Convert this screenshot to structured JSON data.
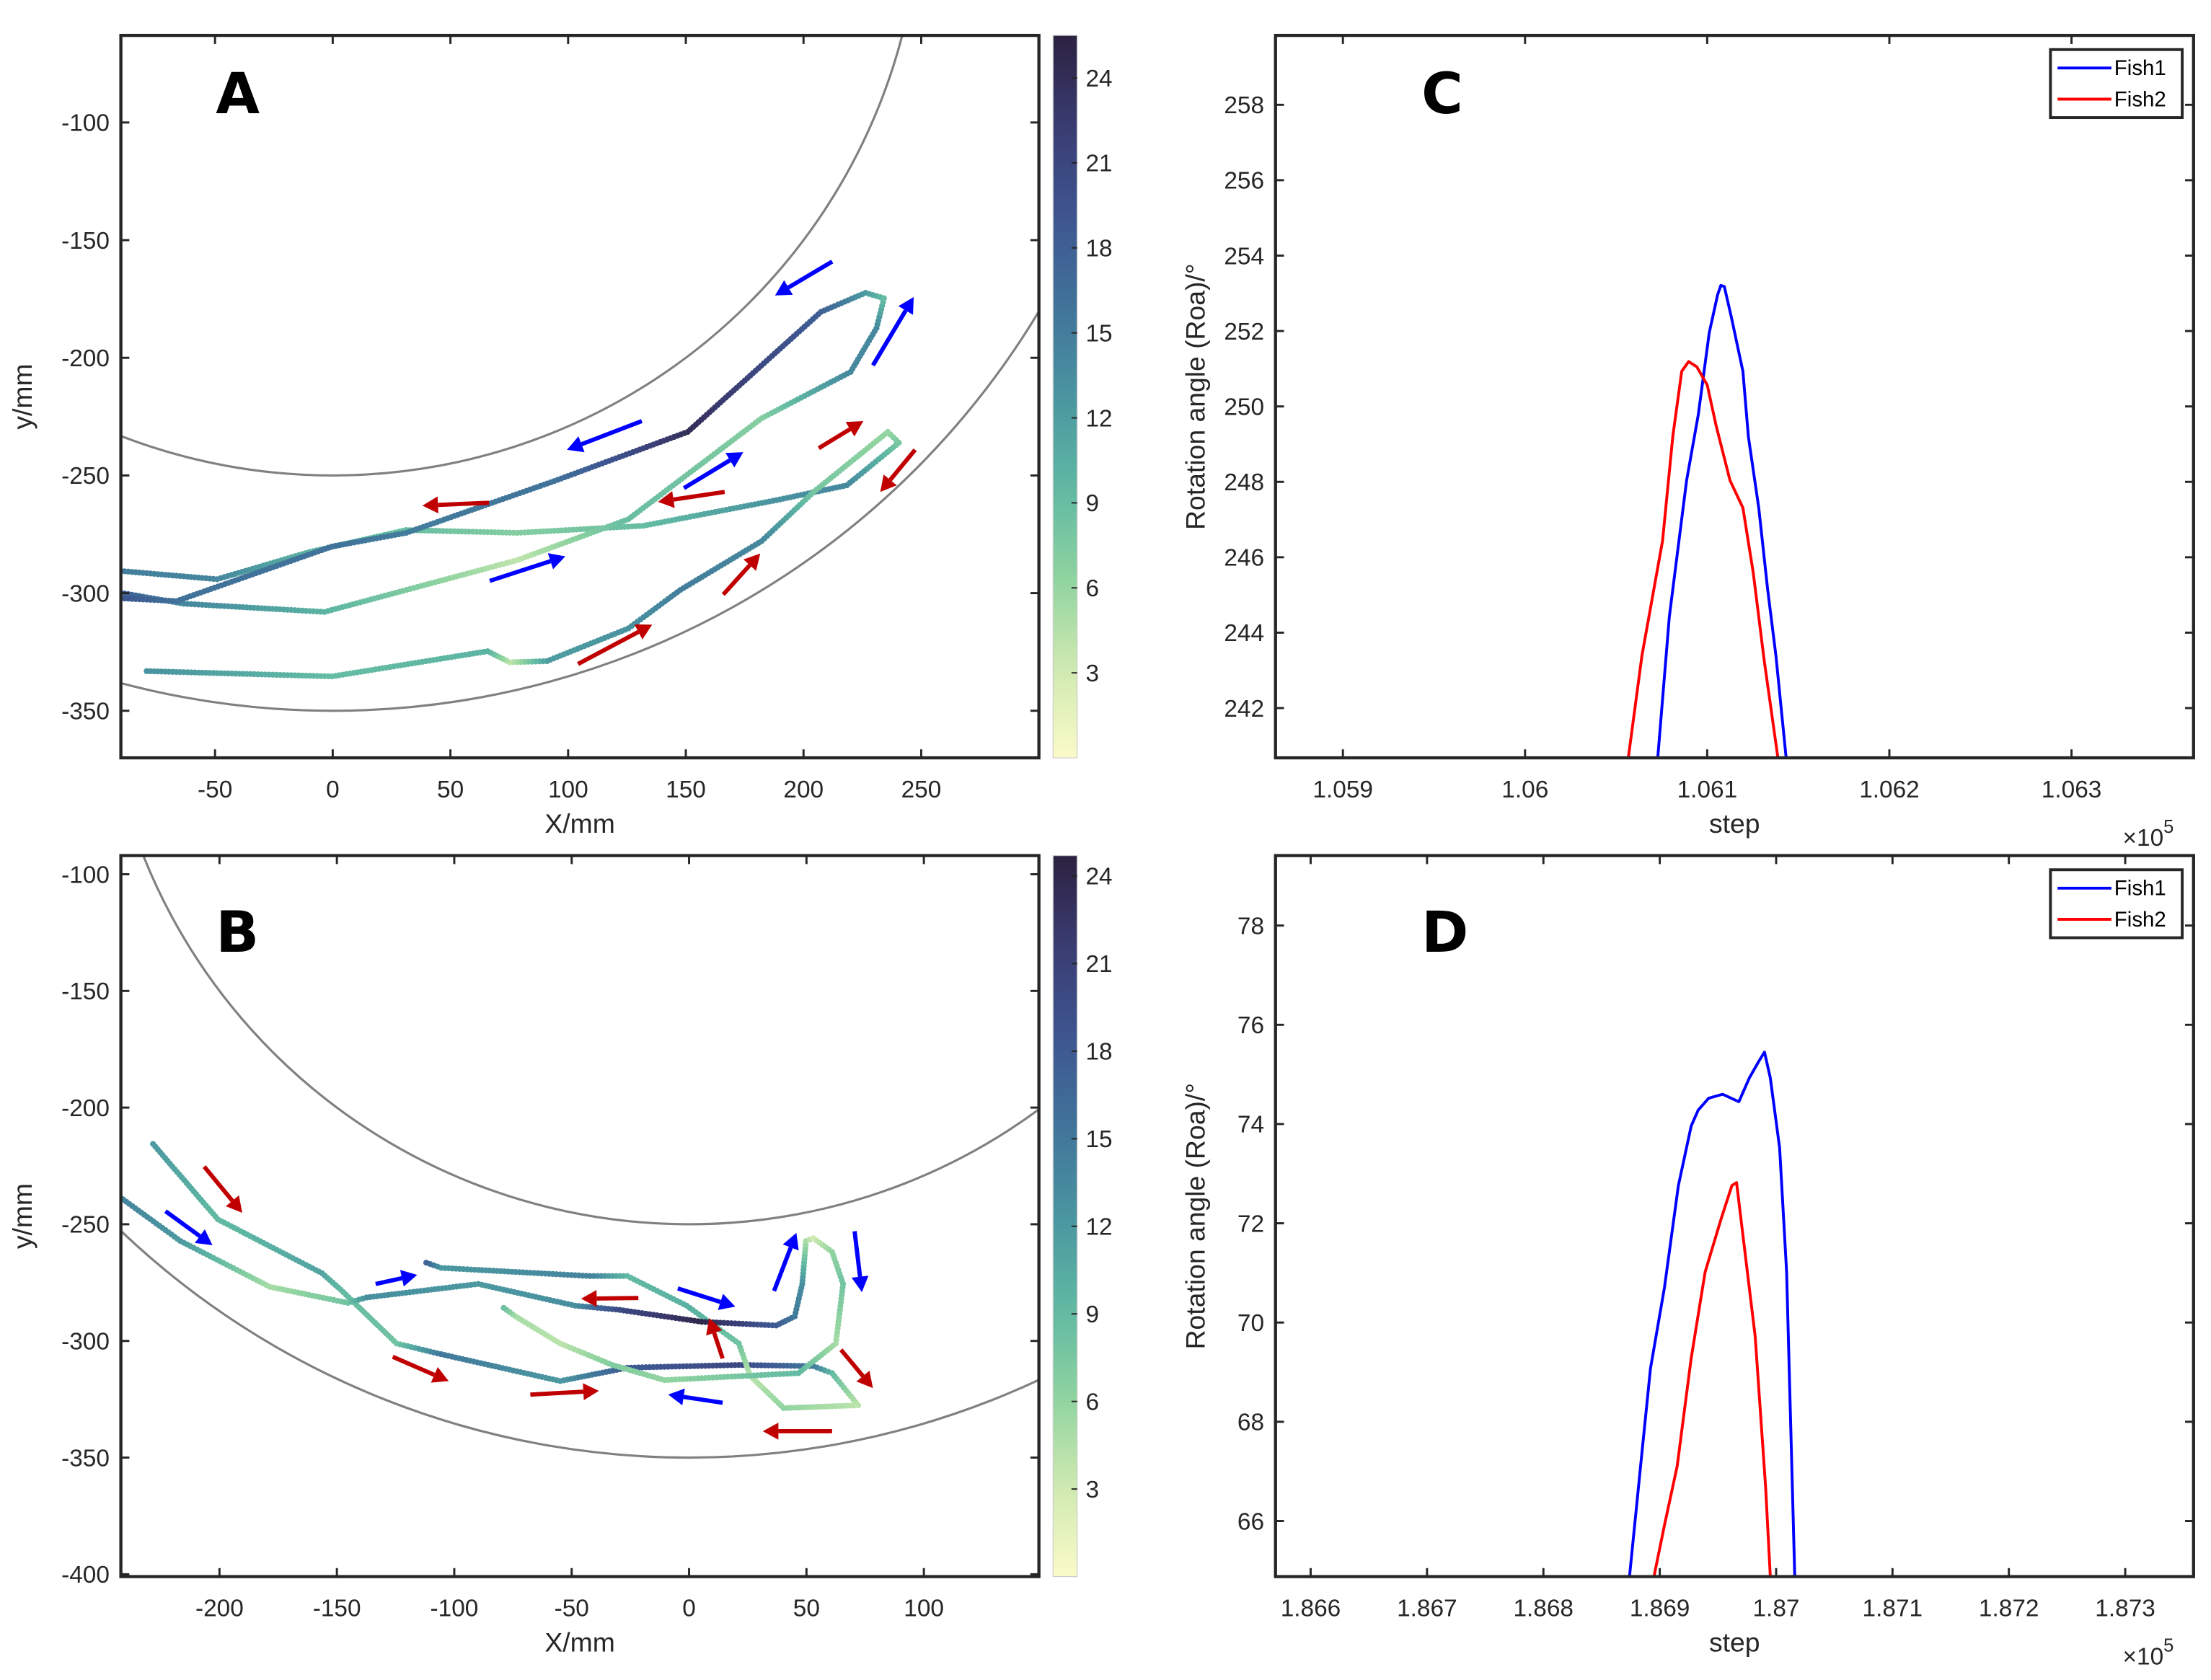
{
  "colormap": [
    "#fbfbc9",
    "#cfeab0",
    "#8ed3a0",
    "#5fb8a3",
    "#4a95a0",
    "#40739a",
    "#3e5590",
    "#3a3c72",
    "#2c2240"
  ],
  "chart_data": [
    {
      "panel_label": "A",
      "type": "scatter",
      "xlabel": "X/mm",
      "ylabel": "y/mm",
      "xlim": [
        -90,
        300
      ],
      "ylim": [
        -370,
        -63
      ],
      "xticks": [
        -50,
        0,
        50,
        100,
        150,
        200,
        250
      ],
      "yticks": [
        -100,
        -150,
        -200,
        -250,
        -300,
        -350
      ],
      "boundary_radii": [
        250,
        350
      ],
      "colorbar": {
        "clim": [
          0,
          25.5
        ],
        "ticks": [
          3,
          6,
          9,
          12,
          15,
          18,
          21,
          24
        ]
      },
      "trajectories": [
        {
          "name": "Fish1",
          "points": [
            [
              -90,
              -290.6,
              15
            ],
            [
              -49.1,
              -294.1,
              14
            ],
            [
              -9.8,
              -282.5,
              10
            ],
            [
              31.2,
              -273.2,
              9
            ],
            [
              78.4,
              -274.4,
              7
            ],
            [
              131.9,
              -271.4,
              9
            ],
            [
              188.5,
              -260.5,
              13
            ],
            [
              218.4,
              -254.2,
              14
            ],
            [
              240.5,
              -236.1,
              8
            ],
            [
              235.8,
              -231.5,
              6
            ],
            [
              204.3,
              -257,
              8
            ],
            [
              182.2,
              -277.9,
              14
            ],
            [
              147.6,
              -298.7,
              15
            ],
            [
              125.6,
              -315,
              13
            ],
            [
              91,
              -328.9,
              12
            ],
            [
              75.2,
              -329.4,
              4
            ],
            [
              65.8,
              -324.7,
              10
            ],
            [
              -0.3,
              -335.4,
              9
            ],
            [
              -80.6,
              -333.1,
              13
            ]
          ]
        },
        {
          "name": "Fish2",
          "points": [
            [
              -90,
              -299.9,
              18
            ],
            [
              -63.3,
              -304.5,
              14
            ],
            [
              -3.5,
              -308,
              10
            ],
            [
              78.4,
              -286,
              4
            ],
            [
              125.6,
              -268.6,
              9
            ],
            [
              182.2,
              -225.7,
              7
            ],
            [
              220,
              -206,
              14
            ],
            [
              231,
              -187.4,
              14
            ],
            [
              234.2,
              -174.7,
              9
            ],
            [
              226.3,
              -172.4,
              12
            ],
            [
              207.4,
              -180.5,
              18
            ],
            [
              150.8,
              -231.5,
              24
            ],
            [
              94.1,
              -252.4,
              16
            ],
            [
              31.2,
              -274.4,
              15
            ],
            [
              -0.3,
              -280.2,
              16
            ],
            [
              -66.4,
              -303.4,
              16
            ],
            [
              -90,
              -302.2,
              19
            ]
          ]
        }
      ],
      "arrows": [
        {
          "color": "#0000ff",
          "from": [
            212.2,
            -159.1
          ],
          "to": [
            187.9,
            -173.5
          ]
        },
        {
          "color": "#0000ff",
          "from": [
            229.5,
            -203.2
          ],
          "to": [
            246.8,
            -174.2
          ]
        },
        {
          "color": "#0000ff",
          "from": [
            131.3,
            -226.9
          ],
          "to": [
            99.5,
            -239.1
          ]
        },
        {
          "color": "#0000ff",
          "from": [
            149.2,
            -255.4
          ],
          "to": [
            174.4,
            -240.1
          ]
        },
        {
          "color": "#0000ff",
          "from": [
            66.7,
            -294.8
          ],
          "to": [
            98.8,
            -284.4
          ]
        },
        {
          "color": "#c00000",
          "from": [
            66.4,
            -261.6
          ],
          "to": [
            38.1,
            -262.8
          ]
        },
        {
          "color": "#c00000",
          "from": [
            166.5,
            -257
          ],
          "to": [
            138.2,
            -261.2
          ]
        },
        {
          "color": "#c00000",
          "from": [
            206.5,
            -238.4
          ],
          "to": [
            225.4,
            -226.9
          ]
        },
        {
          "color": "#c00000",
          "from": [
            247.4,
            -239.1
          ],
          "to": [
            232.6,
            -257
          ]
        },
        {
          "color": "#c00000",
          "from": [
            165.9,
            -300.6
          ],
          "to": [
            181.6,
            -283.2
          ]
        },
        {
          "color": "#c00000",
          "from": [
            104.2,
            -330.1
          ],
          "to": [
            135.7,
            -313.4
          ]
        }
      ]
    },
    {
      "panel_label": "B",
      "type": "scatter",
      "xlabel": "X/mm",
      "ylabel": "y/mm",
      "xlim": [
        -242,
        149
      ],
      "ylim": [
        -401,
        -92
      ],
      "xticks": [
        -200,
        -150,
        -100,
        -50,
        0,
        50,
        100
      ],
      "yticks": [
        -100,
        -150,
        -200,
        -250,
        -300,
        -350,
        -400
      ],
      "boundary_radii": [
        250,
        350
      ],
      "colorbar": {
        "clim": [
          0,
          24.7
        ],
        "ticks": [
          3,
          6,
          9,
          12,
          15,
          18,
          21,
          24
        ]
      },
      "trajectories": [
        {
          "name": "Fish1",
          "points": [
            [
              -228.3,
              -215.6,
              12
            ],
            [
              -200.7,
              -247.9,
              9
            ],
            [
              -156.3,
              -271,
              11
            ],
            [
              -148.4,
              -278,
              9
            ],
            [
              -124.6,
              -301.1,
              8
            ],
            [
              -105.6,
              -305.7,
              15
            ],
            [
              -54.9,
              -317.2,
              12
            ],
            [
              -26.3,
              -311.5,
              18
            ],
            [
              21.2,
              -310.3,
              20
            ],
            [
              52.9,
              -310.8,
              15
            ],
            [
              60.9,
              -313.8,
              9
            ],
            [
              72,
              -327.6,
              4
            ],
            [
              40.3,
              -328.8,
              6
            ],
            [
              26,
              -314.9,
              4
            ],
            [
              21.2,
              -301.1,
              8
            ],
            [
              -1,
              -284.9,
              10
            ],
            [
              -26.3,
              -272.2,
              9
            ],
            [
              -42.2,
              -272.2,
              14
            ],
            [
              -105.6,
              -268.7,
              12
            ],
            [
              -113.5,
              -265.9,
              18
            ]
          ]
        },
        {
          "name": "Fish2",
          "points": [
            [
              -243.6,
              -237.5,
              14
            ],
            [
              -216.6,
              -257.2,
              12
            ],
            [
              -178.6,
              -276.8,
              5
            ],
            [
              -145.3,
              -283.7,
              8
            ],
            [
              -137.4,
              -281.4,
              13
            ],
            [
              -89.8,
              -275.6,
              12
            ],
            [
              -48.5,
              -284.9,
              13
            ],
            [
              -29.5,
              -286.7,
              20
            ],
            [
              5.4,
              -291.8,
              24
            ],
            [
              37.1,
              -293.4,
              18
            ],
            [
              45,
              -289.5,
              15
            ],
            [
              48.2,
              -275.6,
              13
            ],
            [
              49.8,
              -257.2,
              5
            ],
            [
              52.9,
              -256,
              3
            ],
            [
              60.9,
              -261.8,
              6
            ],
            [
              65.6,
              -275.6,
              8
            ],
            [
              62.5,
              -301.1,
              5
            ],
            [
              46.6,
              -313.8,
              9
            ],
            [
              -10.5,
              -316.8,
              6
            ],
            [
              -32.7,
              -310.3,
              7
            ],
            [
              -54.9,
              -301.1,
              4
            ],
            [
              -73.9,
              -289.5,
              5
            ],
            [
              -80.2,
              -284.9,
              9
            ]
          ]
        }
      ],
      "arrows": [
        {
          "color": "#0000ff",
          "from": [
            -223,
            -244.4
          ],
          "to": [
            -203,
            -259
          ]
        },
        {
          "color": "#0000ff",
          "from": [
            -133.5,
            -275.6
          ],
          "to": [
            -115.8,
            -271.7
          ]
        },
        {
          "color": "#0000ff",
          "from": [
            -4.8,
            -277.5
          ],
          "to": [
            19.7,
            -285.3
          ]
        },
        {
          "color": "#0000ff",
          "from": [
            36.2,
            -278.6
          ],
          "to": [
            45.7,
            -253.7
          ]
        },
        {
          "color": "#0000ff",
          "from": [
            70.5,
            -253
          ],
          "to": [
            73.6,
            -279.1
          ]
        },
        {
          "color": "#0000ff",
          "from": [
            14.3,
            -326.5
          ],
          "to": [
            -8.9,
            -323
          ]
        },
        {
          "color": "#c00000",
          "from": [
            -206.5,
            -225.3
          ],
          "to": [
            -190.3,
            -245.1
          ]
        },
        {
          "color": "#c00000",
          "from": [
            -126.2,
            -306.8
          ],
          "to": [
            -102.4,
            -317.2
          ]
        },
        {
          "color": "#c00000",
          "from": [
            -67.6,
            -323
          ],
          "to": [
            -38.4,
            -321.4
          ]
        },
        {
          "color": "#c00000",
          "from": [
            -21.6,
            -281.6
          ],
          "to": [
            -46,
            -281.9
          ]
        },
        {
          "color": "#c00000",
          "from": [
            14.3,
            -307.5
          ],
          "to": [
            8.6,
            -290.2
          ]
        },
        {
          "color": "#c00000",
          "from": [
            64.7,
            -303.8
          ],
          "to": [
            78.3,
            -320.2
          ]
        },
        {
          "color": "#c00000",
          "from": [
            60.9,
            -338.7
          ],
          "to": [
            31.4,
            -338.7
          ]
        }
      ]
    },
    {
      "panel_label": "C",
      "type": "line",
      "xlabel": "step",
      "ylabel": "Rotation angle (Roa)/°",
      "x_multiplier": "×10",
      "x_multiplier_exp": "5",
      "xlim": [
        1.05863,
        1.06367
      ],
      "ylim": [
        240.68,
        259.84
      ],
      "xticks": [
        1.059,
        1.06,
        1.061,
        1.062,
        1.063
      ],
      "xtick_labels": [
        "1.059",
        "1.06",
        "1.061",
        "1.062",
        "1.063"
      ],
      "yticks": [
        242,
        244,
        246,
        248,
        250,
        252,
        254,
        256,
        258
      ],
      "series": [
        {
          "name": "Fish1",
          "color": "#0000ff",
          "points": [
            [
              1.060728,
              240.65
            ],
            [
              1.060792,
              244.42
            ],
            [
              1.060887,
              248.04
            ],
            [
              1.060951,
              249.78
            ],
            [
              1.061011,
              251.95
            ],
            [
              1.061057,
              252.96
            ],
            [
              1.061075,
              253.21
            ],
            [
              1.061094,
              253.18
            ],
            [
              1.061132,
              252.38
            ],
            [
              1.061196,
              250.93
            ],
            [
              1.061226,
              249.2
            ],
            [
              1.061283,
              247.31
            ],
            [
              1.061332,
              245.14
            ],
            [
              1.061377,
              243.4
            ],
            [
              1.061434,
              240.65
            ]
          ]
        },
        {
          "name": "Fish2",
          "color": "#ff0000",
          "points": [
            [
              1.060566,
              240.65
            ],
            [
              1.060642,
              243.4
            ],
            [
              1.060755,
              246.44
            ],
            [
              1.060811,
              249.2
            ],
            [
              1.06086,
              250.93
            ],
            [
              1.060898,
              251.19
            ],
            [
              1.060943,
              251.05
            ],
            [
              1.061,
              250.57
            ],
            [
              1.061049,
              249.49
            ],
            [
              1.061125,
              248.04
            ],
            [
              1.061196,
              247.31
            ],
            [
              1.061253,
              245.58
            ],
            [
              1.061313,
              243.26
            ],
            [
              1.061389,
              240.65
            ]
          ]
        }
      ],
      "legend": "top-right"
    },
    {
      "panel_label": "D",
      "type": "line",
      "xlabel": "step",
      "ylabel": "Rotation angle (Roa)/°",
      "x_multiplier": "×10",
      "x_multiplier_exp": "5",
      "xlim": [
        1.865698,
        1.873587
      ],
      "ylim": [
        64.88,
        79.41
      ],
      "xticks": [
        1.866,
        1.867,
        1.868,
        1.869,
        1.87,
        1.871,
        1.872,
        1.873
      ],
      "xtick_labels": [
        "1.866",
        "1.867",
        "1.868",
        "1.869",
        "1.87",
        "1.871",
        "1.872",
        "1.873"
      ],
      "yticks": [
        66,
        68,
        70,
        72,
        74,
        76,
        78
      ],
      "series": [
        {
          "name": "Fish1",
          "color": "#0000ff",
          "points": [
            [
              1.86874,
              64.88
            ],
            [
              1.86884,
              67.22
            ],
            [
              1.86892,
              69.07
            ],
            [
              1.86904,
              70.7
            ],
            [
              1.86916,
              72.76
            ],
            [
              1.86927,
              73.96
            ],
            [
              1.86933,
              74.28
            ],
            [
              1.86942,
              74.52
            ],
            [
              1.86954,
              74.6
            ],
            [
              1.86968,
              74.45
            ],
            [
              1.86977,
              74.93
            ],
            [
              1.86985,
              75.26
            ],
            [
              1.8699,
              75.45
            ],
            [
              1.86995,
              74.93
            ],
            [
              1.87003,
              73.52
            ],
            [
              1.87009,
              71.02
            ],
            [
              1.87016,
              64.88
            ]
          ]
        },
        {
          "name": "Fish2",
          "color": "#ff0000",
          "points": [
            [
              1.86895,
              64.88
            ],
            [
              1.86904,
              65.91
            ],
            [
              1.86915,
              67.11
            ],
            [
              1.86927,
              69.28
            ],
            [
              1.86939,
              71.02
            ],
            [
              1.86953,
              72.11
            ],
            [
              1.86962,
              72.76
            ],
            [
              1.86966,
              72.82
            ],
            [
              1.86973,
              71.46
            ],
            [
              1.86982,
              69.72
            ],
            [
              1.86991,
              66.67
            ],
            [
              1.86995,
              64.88
            ]
          ]
        }
      ],
      "legend": "top-right"
    }
  ]
}
